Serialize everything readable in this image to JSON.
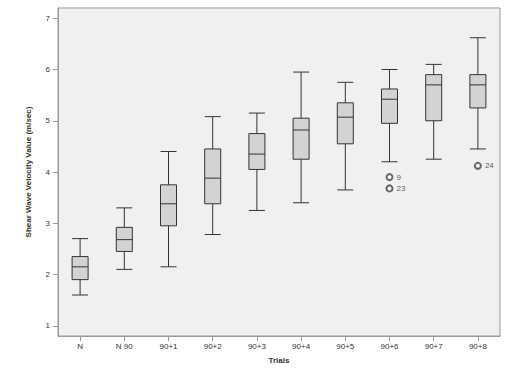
{
  "chart_data": {
    "type": "boxplot",
    "x_label": "Trials",
    "y_label": "Shear Wave Velocity Value (m/sec)",
    "categories": [
      "N",
      "N 90",
      "90+1",
      "90+2",
      "90+3",
      "90+4",
      "90+5",
      "90+6",
      "90+7",
      "90+8"
    ],
    "values": [
      [
        1.6,
        1.9,
        2.15,
        2.35,
        2.7
      ],
      [
        2.1,
        2.45,
        2.68,
        2.92,
        3.3
      ],
      [
        2.15,
        2.95,
        3.38,
        3.75,
        4.4
      ],
      [
        2.78,
        3.38,
        3.88,
        4.45,
        5.08
      ],
      [
        3.25,
        4.05,
        4.35,
        4.75,
        5.15
      ],
      [
        3.4,
        4.25,
        4.82,
        5.05,
        5.95
      ],
      [
        3.65,
        4.55,
        5.07,
        5.35,
        5.75
      ],
      [
        4.2,
        4.95,
        5.42,
        5.62,
        6.0
      ],
      [
        4.25,
        5.0,
        5.7,
        5.9,
        6.1
      ],
      [
        4.45,
        5.25,
        5.7,
        5.9,
        6.62
      ]
    ],
    "outliers": [
      {
        "category": "90+6",
        "value": 3.9,
        "label": "9"
      },
      {
        "category": "90+6",
        "value": 3.68,
        "label": "23"
      },
      {
        "category": "90+8",
        "value": 4.12,
        "label": "24"
      }
    ],
    "color": "#d3d3d3",
    "marker": "emptyCircle",
    "ylim": [
      0.8,
      7.2
    ],
    "yticks": [
      1,
      2,
      3,
      4,
      5,
      6,
      7
    ],
    "grid": false
  }
}
